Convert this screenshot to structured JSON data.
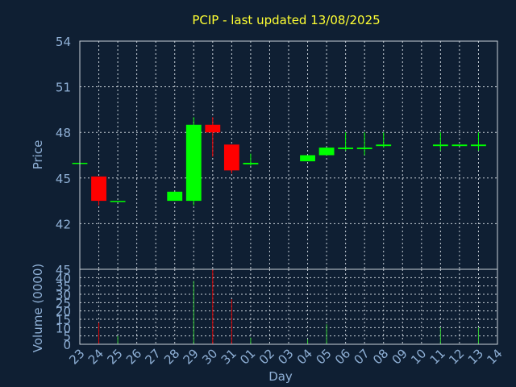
{
  "chart_data": {
    "type": "candlestick",
    "title": "PCIP - last updated 13/08/2025",
    "price_ylabel": "Price",
    "volume_ylabel": "Volume (0000)",
    "xlabel": "Day",
    "price_ylim": [
      39,
      54
    ],
    "price_ticks": [
      "54",
      "51",
      "48",
      "45",
      "42"
    ],
    "volume_ylim": [
      0,
      45
    ],
    "volume_ticks": [
      "45",
      "40",
      "35",
      "30",
      "25",
      "20",
      "15",
      "10",
      "5",
      "0"
    ],
    "days": [
      "23",
      "24",
      "25",
      "26",
      "27",
      "28",
      "29",
      "30",
      "31",
      "01",
      "02",
      "03",
      "04",
      "05",
      "06",
      "07",
      "08",
      "09",
      "10",
      "11",
      "12",
      "13",
      "14"
    ],
    "candles": [
      {
        "day": "23",
        "open": 46.0,
        "high": 46.0,
        "low": 46.0,
        "close": 46.0,
        "volume": 0
      },
      {
        "day": "24",
        "open": 45.1,
        "high": 45.1,
        "low": 43.2,
        "close": 43.5,
        "volume": 13
      },
      {
        "day": "25",
        "open": 43.5,
        "high": 43.5,
        "low": 43.5,
        "close": 43.5,
        "volume": 5
      },
      {
        "day": "28",
        "open": 43.5,
        "high": 44.1,
        "low": 43.5,
        "close": 44.1,
        "volume": 0
      },
      {
        "day": "29",
        "open": 43.5,
        "high": 49.0,
        "low": 43.2,
        "close": 48.5,
        "volume": 38
      },
      {
        "day": "30",
        "open": 48.5,
        "high": 49.0,
        "low": 46.4,
        "close": 48.0,
        "volume": 45
      },
      {
        "day": "31",
        "open": 47.2,
        "high": 47.2,
        "low": 45.3,
        "close": 45.5,
        "volume": 27
      },
      {
        "day": "01",
        "open": 45.9,
        "high": 46.6,
        "low": 45.8,
        "close": 46.0,
        "volume": 4
      },
      {
        "day": "04",
        "open": 46.1,
        "high": 46.5,
        "low": 46.1,
        "close": 46.5,
        "volume": 3
      },
      {
        "day": "05",
        "open": 46.5,
        "high": 47.0,
        "low": 46.5,
        "close": 47.0,
        "volume": 12
      },
      {
        "day": "06",
        "open": 46.9,
        "high": 48.0,
        "low": 46.8,
        "close": 47.0,
        "volume": 0
      },
      {
        "day": "07",
        "open": 46.9,
        "high": 48.0,
        "low": 46.5,
        "close": 47.0,
        "volume": 0
      },
      {
        "day": "08",
        "open": 47.1,
        "high": 48.0,
        "low": 47.0,
        "close": 47.2,
        "volume": 0
      },
      {
        "day": "11",
        "open": 47.1,
        "high": 48.0,
        "low": 46.8,
        "close": 47.2,
        "volume": 10
      },
      {
        "day": "12",
        "open": 47.1,
        "high": 47.2,
        "low": 47.1,
        "close": 47.2,
        "volume": 0
      },
      {
        "day": "13",
        "open": 47.1,
        "high": 48.0,
        "low": 46.8,
        "close": 47.2,
        "volume": 10
      }
    ],
    "colors": {
      "background": "#0f1f33",
      "grid": "#c8d0d8",
      "frame": "#c8d0d8",
      "axis_text": "#8fb0d6",
      "title": "#ffff33",
      "up": "#00ff00",
      "down": "#ff0000",
      "volume_up": "#33cc33",
      "volume_down": "#dd0000"
    },
    "grid": true
  }
}
